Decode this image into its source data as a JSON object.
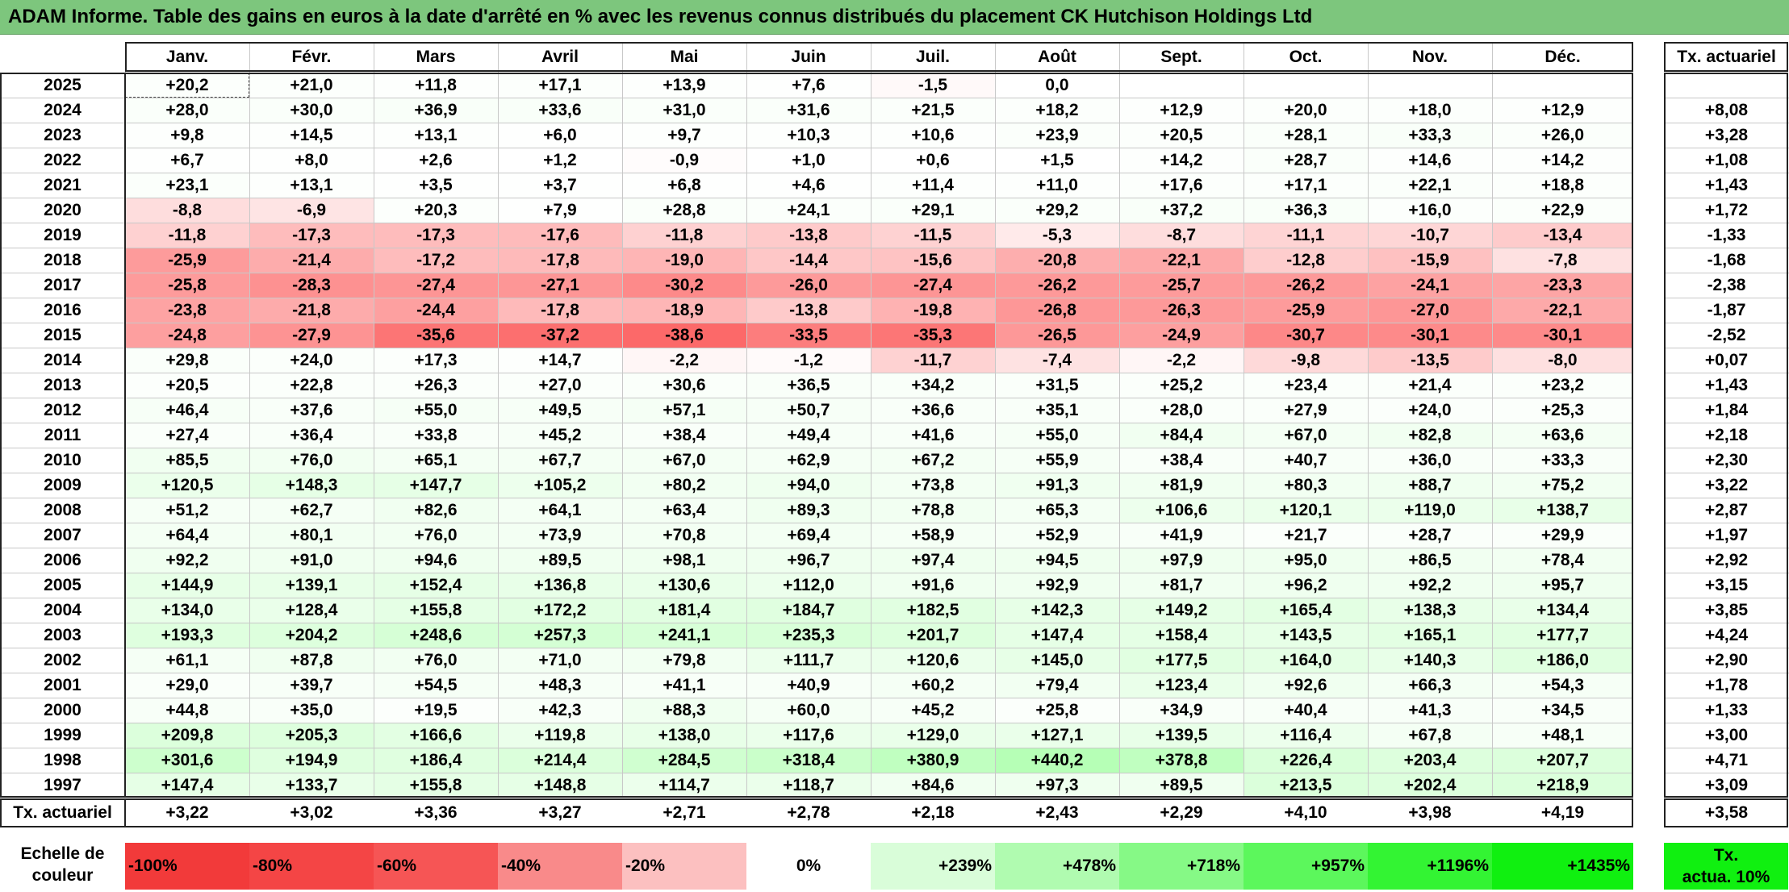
{
  "title": "ADAM Informe. Table des gains en euros à la date d'arrêté en % avec les revenus connus distribués du placement CK Hutchison Holdings Ltd",
  "months": [
    "Janv.",
    "Févr.",
    "Mars",
    "Avril",
    "Mai",
    "Juin",
    "Juil.",
    "Août",
    "Sept.",
    "Oct.",
    "Nov.",
    "Déc."
  ],
  "rate_header": "Tx. actuariel",
  "rows": [
    {
      "year": "2025",
      "values": [
        "+20,2",
        "+21,0",
        "+11,8",
        "+17,1",
        "+13,9",
        "+7,6",
        "-1,5",
        "0,0",
        "",
        "",
        "",
        ""
      ],
      "rate": ""
    },
    {
      "year": "2024",
      "values": [
        "+28,0",
        "+30,0",
        "+36,9",
        "+33,6",
        "+31,0",
        "+31,6",
        "+21,5",
        "+18,2",
        "+12,9",
        "+20,0",
        "+18,0",
        "+12,9"
      ],
      "rate": "+8,08"
    },
    {
      "year": "2023",
      "values": [
        "+9,8",
        "+14,5",
        "+13,1",
        "+6,0",
        "+9,7",
        "+10,3",
        "+10,6",
        "+23,9",
        "+20,5",
        "+28,1",
        "+33,3",
        "+26,0"
      ],
      "rate": "+3,28"
    },
    {
      "year": "2022",
      "values": [
        "+6,7",
        "+8,0",
        "+2,6",
        "+1,2",
        "-0,9",
        "+1,0",
        "+0,6",
        "+1,5",
        "+14,2",
        "+28,7",
        "+14,6",
        "+14,2"
      ],
      "rate": "+1,08"
    },
    {
      "year": "2021",
      "values": [
        "+23,1",
        "+13,1",
        "+3,5",
        "+3,7",
        "+6,8",
        "+4,6",
        "+11,4",
        "+11,0",
        "+17,6",
        "+17,1",
        "+22,1",
        "+18,8"
      ],
      "rate": "+1,43"
    },
    {
      "year": "2020",
      "values": [
        "-8,8",
        "-6,9",
        "+20,3",
        "+7,9",
        "+28,8",
        "+24,1",
        "+29,1",
        "+29,2",
        "+37,2",
        "+36,3",
        "+16,0",
        "+22,9"
      ],
      "rate": "+1,72"
    },
    {
      "year": "2019",
      "values": [
        "-11,8",
        "-17,3",
        "-17,3",
        "-17,6",
        "-11,8",
        "-13,8",
        "-11,5",
        "-5,3",
        "-8,7",
        "-11,1",
        "-10,7",
        "-13,4"
      ],
      "rate": "-1,33"
    },
    {
      "year": "2018",
      "values": [
        "-25,9",
        "-21,4",
        "-17,2",
        "-17,8",
        "-19,0",
        "-14,4",
        "-15,6",
        "-20,8",
        "-22,1",
        "-12,8",
        "-15,9",
        "-7,8"
      ],
      "rate": "-1,68"
    },
    {
      "year": "2017",
      "values": [
        "-25,8",
        "-28,3",
        "-27,4",
        "-27,1",
        "-30,2",
        "-26,0",
        "-27,4",
        "-26,2",
        "-25,7",
        "-26,2",
        "-24,1",
        "-23,3"
      ],
      "rate": "-2,38"
    },
    {
      "year": "2016",
      "values": [
        "-23,8",
        "-21,8",
        "-24,4",
        "-17,8",
        "-18,9",
        "-13,8",
        "-19,8",
        "-26,8",
        "-26,3",
        "-25,9",
        "-27,0",
        "-22,1"
      ],
      "rate": "-1,87"
    },
    {
      "year": "2015",
      "values": [
        "-24,8",
        "-27,9",
        "-35,6",
        "-37,2",
        "-38,6",
        "-33,5",
        "-35,3",
        "-26,5",
        "-24,9",
        "-30,7",
        "-30,1",
        "-30,1"
      ],
      "rate": "-2,52"
    },
    {
      "year": "2014",
      "values": [
        "+29,8",
        "+24,0",
        "+17,3",
        "+14,7",
        "-2,2",
        "-1,2",
        "-11,7",
        "-7,4",
        "-2,2",
        "-9,8",
        "-13,5",
        "-8,0"
      ],
      "rate": "+0,07"
    },
    {
      "year": "2013",
      "values": [
        "+20,5",
        "+22,8",
        "+26,3",
        "+27,0",
        "+30,6",
        "+36,5",
        "+34,2",
        "+31,5",
        "+25,2",
        "+23,4",
        "+21,4",
        "+23,2"
      ],
      "rate": "+1,43"
    },
    {
      "year": "2012",
      "values": [
        "+46,4",
        "+37,6",
        "+55,0",
        "+49,5",
        "+57,1",
        "+50,7",
        "+36,6",
        "+35,1",
        "+28,0",
        "+27,9",
        "+24,0",
        "+25,3"
      ],
      "rate": "+1,84"
    },
    {
      "year": "2011",
      "values": [
        "+27,4",
        "+36,4",
        "+33,8",
        "+45,2",
        "+38,4",
        "+49,4",
        "+41,6",
        "+55,0",
        "+84,4",
        "+67,0",
        "+82,8",
        "+63,6"
      ],
      "rate": "+2,18"
    },
    {
      "year": "2010",
      "values": [
        "+85,5",
        "+76,0",
        "+65,1",
        "+67,7",
        "+67,0",
        "+62,9",
        "+67,2",
        "+55,9",
        "+38,4",
        "+40,7",
        "+36,0",
        "+33,3"
      ],
      "rate": "+2,30"
    },
    {
      "year": "2009",
      "values": [
        "+120,5",
        "+148,3",
        "+147,7",
        "+105,2",
        "+80,2",
        "+94,0",
        "+73,8",
        "+91,3",
        "+81,9",
        "+80,3",
        "+88,7",
        "+75,2"
      ],
      "rate": "+3,22"
    },
    {
      "year": "2008",
      "values": [
        "+51,2",
        "+62,7",
        "+82,6",
        "+64,1",
        "+63,4",
        "+89,3",
        "+78,8",
        "+65,3",
        "+106,6",
        "+120,1",
        "+119,0",
        "+138,7"
      ],
      "rate": "+2,87"
    },
    {
      "year": "2007",
      "values": [
        "+64,4",
        "+80,1",
        "+76,0",
        "+73,9",
        "+70,8",
        "+69,4",
        "+58,9",
        "+52,9",
        "+41,9",
        "+21,7",
        "+28,7",
        "+29,9"
      ],
      "rate": "+1,97"
    },
    {
      "year": "2006",
      "values": [
        "+92,2",
        "+91,0",
        "+94,6",
        "+89,5",
        "+98,1",
        "+96,7",
        "+97,4",
        "+94,5",
        "+97,9",
        "+95,0",
        "+86,5",
        "+78,4"
      ],
      "rate": "+2,92"
    },
    {
      "year": "2005",
      "values": [
        "+144,9",
        "+139,1",
        "+152,4",
        "+136,8",
        "+130,6",
        "+112,0",
        "+91,6",
        "+92,9",
        "+81,7",
        "+96,2",
        "+92,2",
        "+95,7"
      ],
      "rate": "+3,15"
    },
    {
      "year": "2004",
      "values": [
        "+134,0",
        "+128,4",
        "+155,8",
        "+172,2",
        "+181,4",
        "+184,7",
        "+182,5",
        "+142,3",
        "+149,2",
        "+165,4",
        "+138,3",
        "+134,4"
      ],
      "rate": "+3,85"
    },
    {
      "year": "2003",
      "values": [
        "+193,3",
        "+204,2",
        "+248,6",
        "+257,3",
        "+241,1",
        "+235,3",
        "+201,7",
        "+147,4",
        "+158,4",
        "+143,5",
        "+165,1",
        "+177,7"
      ],
      "rate": "+4,24"
    },
    {
      "year": "2002",
      "values": [
        "+61,1",
        "+87,8",
        "+76,0",
        "+71,0",
        "+79,8",
        "+111,7",
        "+120,6",
        "+145,0",
        "+177,5",
        "+164,0",
        "+140,3",
        "+186,0"
      ],
      "rate": "+2,90"
    },
    {
      "year": "2001",
      "values": [
        "+29,0",
        "+39,7",
        "+54,5",
        "+48,3",
        "+41,1",
        "+40,9",
        "+60,2",
        "+79,4",
        "+123,4",
        "+92,6",
        "+66,3",
        "+54,3"
      ],
      "rate": "+1,78"
    },
    {
      "year": "2000",
      "values": [
        "+44,8",
        "+35,0",
        "+19,5",
        "+42,3",
        "+88,3",
        "+60,0",
        "+45,2",
        "+25,8",
        "+34,9",
        "+40,4",
        "+41,3",
        "+34,5"
      ],
      "rate": "+1,33"
    },
    {
      "year": "1999",
      "values": [
        "+209,8",
        "+205,3",
        "+166,6",
        "+119,8",
        "+138,0",
        "+117,6",
        "+129,0",
        "+127,1",
        "+139,5",
        "+116,4",
        "+67,8",
        "+48,1"
      ],
      "rate": "+3,00"
    },
    {
      "year": "1998",
      "values": [
        "+301,6",
        "+194,9",
        "+186,4",
        "+214,4",
        "+284,5",
        "+318,4",
        "+380,9",
        "+440,2",
        "+378,8",
        "+226,4",
        "+203,4",
        "+207,7"
      ],
      "rate": "+4,71"
    },
    {
      "year": "1997",
      "values": [
        "+147,4",
        "+133,7",
        "+155,8",
        "+148,8",
        "+114,7",
        "+118,7",
        "+84,6",
        "+97,3",
        "+89,5",
        "+213,5",
        "+202,4",
        "+218,9"
      ],
      "rate": "+3,09"
    }
  ],
  "footer": {
    "label": "Tx. actuariel",
    "values": [
      "+3,22",
      "+3,02",
      "+3,36",
      "+3,27",
      "+2,71",
      "+2,78",
      "+2,18",
      "+2,43",
      "+2,29",
      "+4,10",
      "+3,98",
      "+4,19"
    ],
    "rate": "+3,58"
  },
  "legend": {
    "label_line1": "Echelle de",
    "label_line2": "couleur",
    "steps": [
      {
        "text": "-100%",
        "color": "#f23a3a",
        "align": "left"
      },
      {
        "text": "-80%",
        "color": "#f44545",
        "align": "left"
      },
      {
        "text": "-60%",
        "color": "#f65555",
        "align": "left"
      },
      {
        "text": "-40%",
        "color": "#f98a8a",
        "align": "left"
      },
      {
        "text": "-20%",
        "color": "#fcc0c0",
        "align": "left"
      },
      {
        "text": "0%",
        "color": "#ffffff",
        "align": "center"
      },
      {
        "text": "+239%",
        "color": "#d9fdd9",
        "align": "right"
      },
      {
        "text": "+478%",
        "color": "#b0fbb0",
        "align": "right"
      },
      {
        "text": "+718%",
        "color": "#86f986",
        "align": "right"
      },
      {
        "text": "+957%",
        "color": "#5cf75c",
        "align": "right"
      },
      {
        "text": "+1196%",
        "color": "#33f433",
        "align": "right"
      },
      {
        "text": "+1435%",
        "color": "#10f010",
        "align": "right"
      }
    ],
    "rate_line1": "Tx.",
    "rate_line2": "actua. 10%",
    "rate_color": "#10f010"
  }
}
